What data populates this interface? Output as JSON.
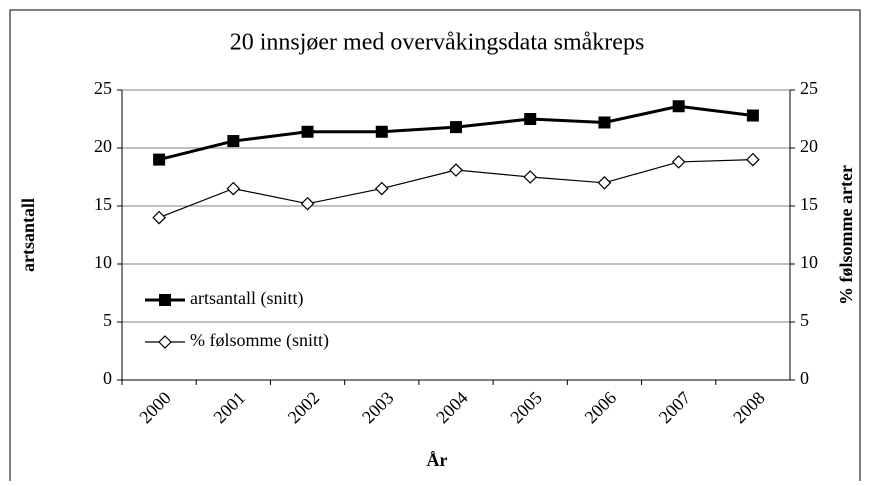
{
  "chart_data": {
    "type": "line",
    "title": "20 innsjøer med overvåkingsdata småkreps",
    "x_label": "År",
    "y_label": "artsantall",
    "y2_label": "% følsomme arter",
    "categories": [
      "2000",
      "2001",
      "2002",
      "2003",
      "2004",
      "2005",
      "2006",
      "2007",
      "2008"
    ],
    "series": [
      {
        "name": "artsantall (snitt)",
        "color": "#000000",
        "marker": "square",
        "values": [
          19,
          20.6,
          21.4,
          21.4,
          21.8,
          22.5,
          22.2,
          23.6,
          22.8
        ]
      },
      {
        "name": "% følsomme (snitt)",
        "color": "#000000",
        "marker": "diamond",
        "axis": "y2",
        "values": [
          14,
          16.5,
          15.2,
          16.5,
          18.1,
          17.5,
          17,
          18.8,
          19
        ]
      }
    ],
    "ylim": [
      0,
      25
    ],
    "yticks": [
      0,
      5,
      10,
      15,
      20,
      25
    ],
    "y2lim": [
      0,
      25
    ],
    "y2ticks": [
      0,
      5,
      10,
      15,
      20,
      25
    ],
    "grid": true,
    "legend": "lower left"
  }
}
